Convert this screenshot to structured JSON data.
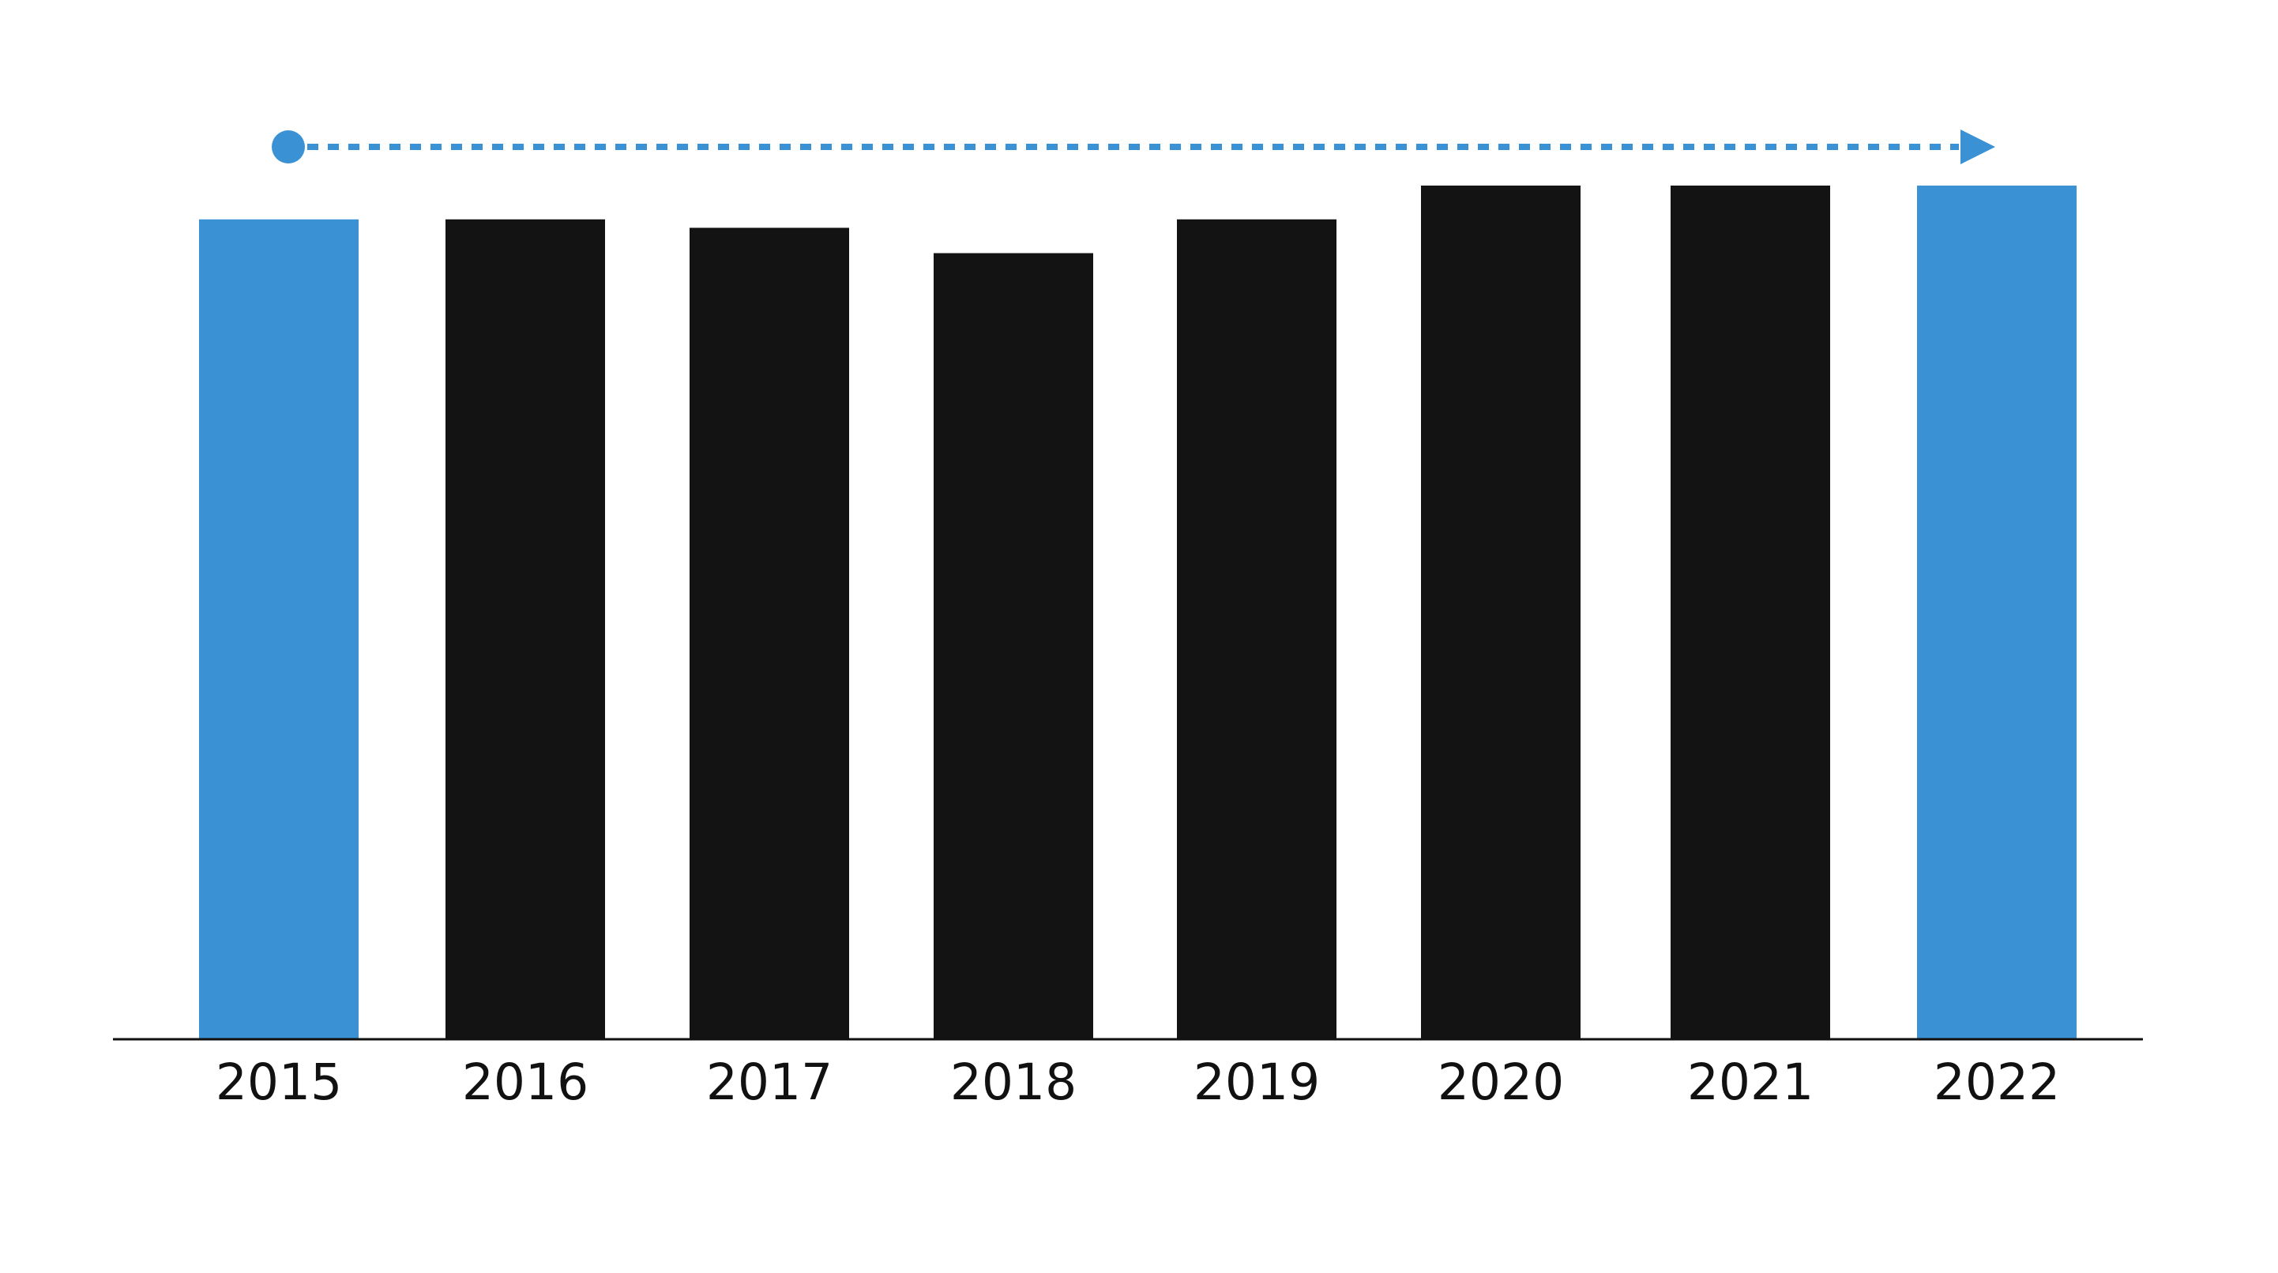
{
  "chart_data": {
    "type": "bar",
    "title": "",
    "xlabel": "",
    "ylabel": "",
    "categories": [
      "2015",
      "2016",
      "2017",
      "2018",
      "2019",
      "2020",
      "2021",
      "2022"
    ],
    "values": [
      97,
      97,
      96,
      93,
      97,
      101,
      101,
      101
    ],
    "ylim": [
      0,
      101
    ],
    "grid": false,
    "legend": "none",
    "highlighted_categories": [
      "2015",
      "2022"
    ],
    "colors": {
      "bar": "#131313",
      "highlight": "#3A91D4",
      "axis": "#111111",
      "arrow": "#3A91D4"
    },
    "annotation": {
      "type": "dotted-arrow",
      "from": "2015",
      "to": "2022"
    }
  }
}
